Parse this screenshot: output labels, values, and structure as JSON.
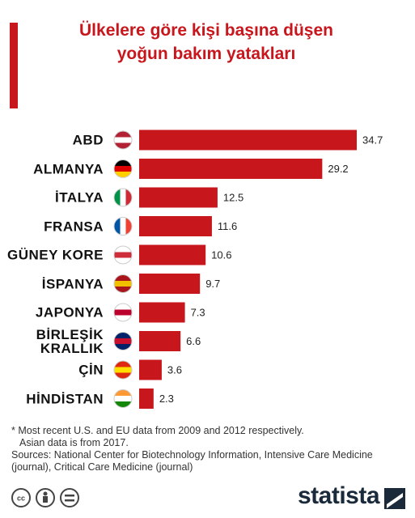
{
  "chart_data": {
    "type": "bar",
    "orientation": "horizontal",
    "title": [
      "Ülkelere göre kişi başına düşen",
      "yoğun bakım yatakları"
    ],
    "categories": [
      "ABD",
      "ALMANYA",
      "İTALYA",
      "FRANSA",
      "GÜNEY KORE",
      "İSPANYA",
      "JAPONYA",
      "BİRLEŞİK KRALLIK",
      "ÇİN",
      "HİNDİSTAN"
    ],
    "values": [
      34.7,
      29.2,
      12.5,
      11.6,
      10.6,
      9.7,
      7.3,
      6.6,
      3.6,
      2.3
    ],
    "color": "#c8161d",
    "note": [
      "* Most recent U.S. and EU data from 2009 and 2012 respectively.",
      "Asian data is from 2017."
    ],
    "sources": "Sources: National Center for Biotechnology Information, Intensive Care Medicine (journal), Critical Care Medicine (journal)",
    "brand": "statista"
  }
}
